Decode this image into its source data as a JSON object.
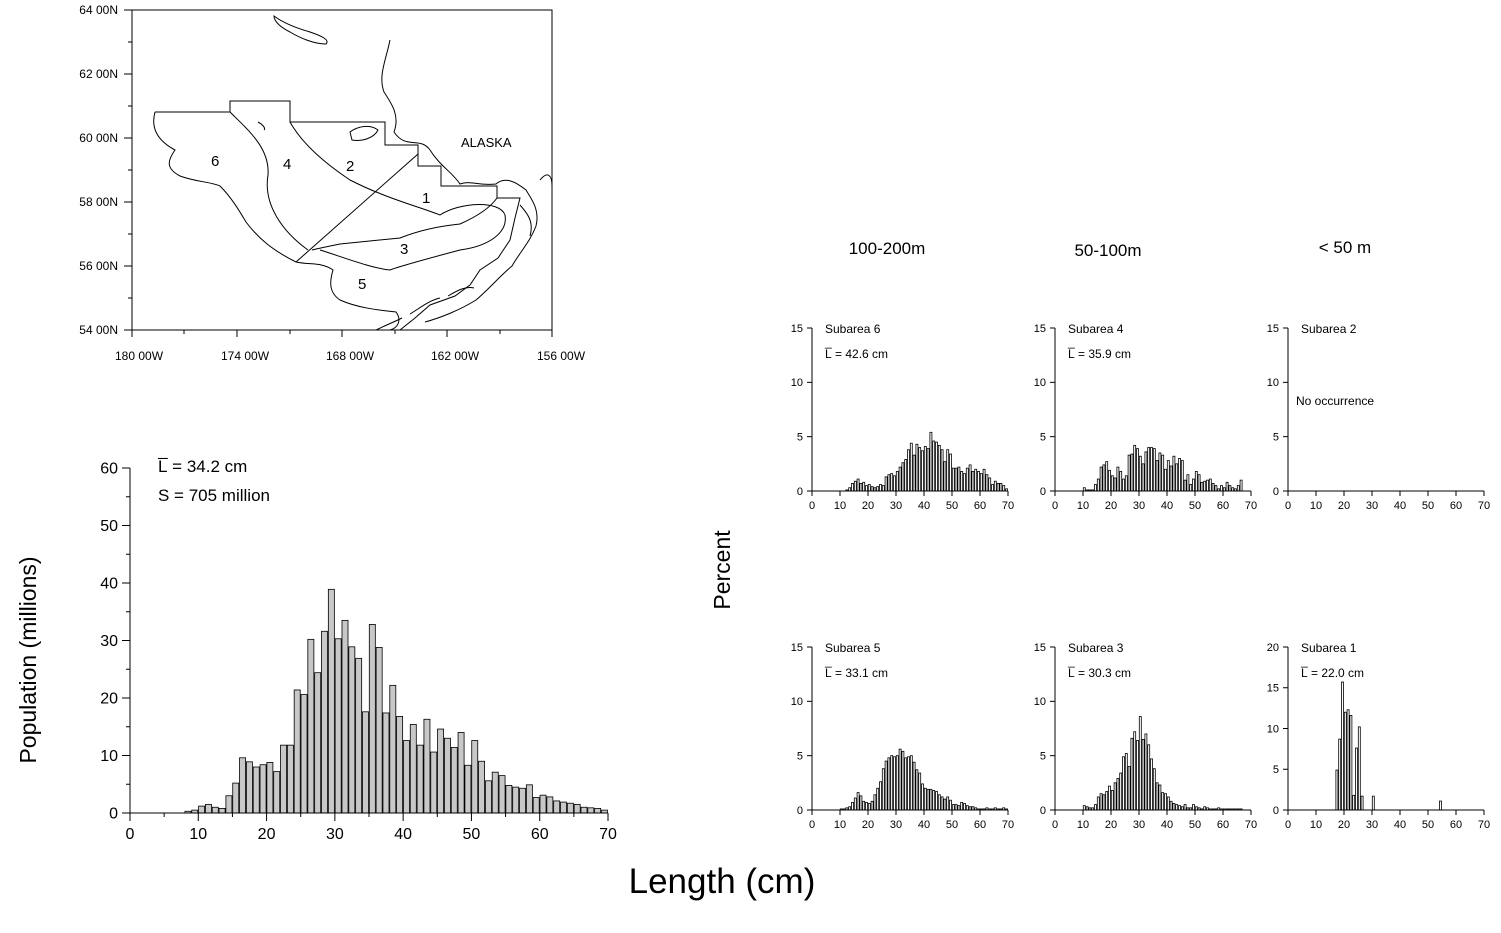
{
  "map": {
    "lat_labels": [
      "64 00N",
      "62 00N",
      "60 00N",
      "58 00N",
      "56 00N",
      "54 00N"
    ],
    "lon_labels": [
      "180 00W",
      "174 00W",
      "168 00W",
      "162 00W",
      "156 00W"
    ],
    "region_label": "ALASKA",
    "subarea_numbers": [
      "1",
      "2",
      "3",
      "4",
      "5",
      "6"
    ]
  },
  "depth_headers": [
    "100-200m",
    "50-100m",
    "< 50 m"
  ],
  "shared_ylabel": "Percent",
  "shared_xlabel": "Length (cm)",
  "main_mean_label": "L̅ = 34.2 cm",
  "main_s_label": "S =  705 million",
  "main_ylabel": "Population (millions)",
  "colors": {
    "main_bar": "#c8c8c8",
    "panel_bar": "#ffffff",
    "stroke": "#000000"
  },
  "chart_data": [
    {
      "type": "bar",
      "name": "Total population",
      "xlabel": "",
      "ylabel": "Population (millions)",
      "xlim": [
        0,
        70
      ],
      "ylim": [
        0,
        60
      ],
      "xticks": [
        0,
        10,
        20,
        30,
        40,
        50,
        60,
        70
      ],
      "yticks": [
        0,
        10,
        20,
        30,
        40,
        50,
        60
      ],
      "annotations": [
        "L̅ = 34.2 cm",
        "S =  705 million"
      ],
      "x": [
        8,
        9,
        10,
        11,
        12,
        13,
        14,
        15,
        16,
        17,
        18,
        19,
        20,
        21,
        22,
        23,
        24,
        25,
        26,
        27,
        28,
        29,
        30,
        31,
        32,
        33,
        34,
        35,
        36,
        37,
        38,
        39,
        40,
        41,
        42,
        43,
        44,
        45,
        46,
        47,
        48,
        49,
        50,
        51,
        52,
        53,
        54,
        55,
        56,
        57,
        58,
        59,
        60,
        61,
        62,
        63,
        64,
        65,
        66,
        67,
        68,
        69
      ],
      "values": [
        0.3,
        0.5,
        1.2,
        1.5,
        1.0,
        0.8,
        3.0,
        5.2,
        9.6,
        8.9,
        8.0,
        8.4,
        8.8,
        7.2,
        11.8,
        11.8,
        21.4,
        20.6,
        30.2,
        24.4,
        31.6,
        38.9,
        30.3,
        33.5,
        28.9,
        26.9,
        17.6,
        32.8,
        28.8,
        17.4,
        22.2,
        16.8,
        12.6,
        15.4,
        11.8,
        16.3,
        10.6,
        14.6,
        13.0,
        11.4,
        14.0,
        8.3,
        12.6,
        9.0,
        5.6,
        7.1,
        6.5,
        4.8,
        4.5,
        4.3,
        4.9,
        2.7,
        3.1,
        2.8,
        2.1,
        1.9,
        1.7,
        1.5,
        1.0,
        0.9,
        0.8,
        0.5
      ]
    },
    {
      "type": "bar",
      "name": "Subarea 6",
      "title": "Subarea 6",
      "mean_label": "L̅ = 42.6 cm",
      "xlim": [
        0,
        70
      ],
      "ylim": [
        0,
        15
      ],
      "xticks": [
        0,
        10,
        20,
        30,
        40,
        50,
        60,
        70
      ],
      "yticks": [
        0,
        5,
        10,
        15
      ],
      "x": [
        12,
        13,
        14,
        15,
        16,
        17,
        18,
        19,
        20,
        21,
        22,
        23,
        24,
        25,
        26,
        27,
        28,
        29,
        30,
        31,
        32,
        33,
        34,
        35,
        36,
        37,
        38,
        39,
        40,
        41,
        42,
        43,
        44,
        45,
        46,
        47,
        48,
        49,
        50,
        51,
        52,
        53,
        54,
        55,
        56,
        57,
        58,
        59,
        60,
        61,
        62,
        63,
        64,
        65,
        66,
        67,
        68,
        69
      ],
      "values": [
        0.1,
        0.3,
        0.7,
        0.9,
        1.1,
        0.7,
        0.8,
        0.5,
        0.6,
        0.4,
        0.3,
        0.4,
        0.6,
        0.5,
        1.3,
        1.5,
        1.6,
        1.4,
        1.8,
        2.2,
        2.6,
        2.9,
        3.8,
        4.4,
        3.3,
        4.3,
        4.0,
        3.7,
        4.1,
        3.9,
        5.4,
        4.6,
        4.5,
        4.2,
        3.8,
        2.7,
        3.8,
        3.4,
        2.1,
        2.1,
        2.2,
        1.8,
        1.6,
        2.1,
        2.4,
        1.8,
        2.0,
        1.8,
        1.6,
        2.0,
        1.5,
        1.2,
        0.6,
        0.9,
        0.7,
        0.7,
        0.5,
        0.2
      ]
    },
    {
      "type": "bar",
      "name": "Subarea 4",
      "title": "Subarea 4",
      "mean_label": "L̅ = 35.9 cm",
      "xlim": [
        0,
        70
      ],
      "ylim": [
        0,
        15
      ],
      "xticks": [
        0,
        10,
        20,
        30,
        40,
        50,
        60,
        70
      ],
      "yticks": [
        0,
        5,
        10,
        15
      ],
      "x": [
        10,
        11,
        12,
        13,
        14,
        15,
        16,
        17,
        18,
        19,
        20,
        21,
        22,
        23,
        24,
        25,
        26,
        27,
        28,
        29,
        30,
        31,
        32,
        33,
        34,
        35,
        36,
        37,
        38,
        39,
        40,
        41,
        42,
        43,
        44,
        45,
        46,
        47,
        48,
        49,
        50,
        51,
        52,
        53,
        54,
        55,
        56,
        57,
        58,
        59,
        60,
        61,
        62,
        63,
        64,
        65,
        66
      ],
      "values": [
        0.3,
        0.1,
        0.1,
        0.1,
        0.6,
        1.1,
        2.2,
        2.4,
        2.7,
        1.9,
        1.4,
        1.2,
        2.2,
        1.8,
        1.1,
        1.4,
        3.3,
        3.4,
        4.2,
        3.9,
        3.2,
        2.5,
        3.6,
        4.0,
        4.0,
        3.9,
        2.8,
        3.5,
        3.3,
        2.0,
        2.8,
        2.3,
        3.2,
        2.5,
        3.0,
        2.8,
        1.0,
        1.5,
        0.6,
        1.1,
        1.8,
        1.5,
        0.8,
        0.9,
        1.0,
        1.1,
        0.7,
        0.5,
        0.2,
        0.5,
        0.3,
        0.8,
        0.5,
        0.3,
        0.2,
        0.5,
        1.0
      ]
    },
    {
      "type": "bar",
      "name": "Subarea 2",
      "title": "Subarea 2",
      "note": "No occurrence",
      "xlim": [
        0,
        70
      ],
      "ylim": [
        0,
        15
      ],
      "xticks": [
        0,
        10,
        20,
        30,
        40,
        50,
        60,
        70
      ],
      "yticks": [
        0,
        5,
        10,
        15
      ],
      "x": [],
      "values": []
    },
    {
      "type": "bar",
      "name": "Subarea 5",
      "title": "Subarea 5",
      "mean_label": "L̅ = 33.1 cm",
      "xlim": [
        0,
        70
      ],
      "ylim": [
        0,
        15
      ],
      "xticks": [
        0,
        10,
        20,
        30,
        40,
        50,
        60,
        70
      ],
      "yticks": [
        0,
        5,
        10,
        15
      ],
      "x": [
        10,
        11,
        12,
        13,
        14,
        15,
        16,
        17,
        18,
        19,
        20,
        21,
        22,
        23,
        24,
        25,
        26,
        27,
        28,
        29,
        30,
        31,
        32,
        33,
        34,
        35,
        36,
        37,
        38,
        39,
        40,
        41,
        42,
        43,
        44,
        45,
        46,
        47,
        48,
        49,
        50,
        51,
        52,
        53,
        54,
        55,
        56,
        57,
        58,
        59,
        60,
        61,
        62,
        63,
        64,
        65,
        66,
        67,
        68,
        69
      ],
      "values": [
        0.1,
        0.1,
        0.2,
        0.3,
        0.7,
        1.1,
        1.6,
        1.3,
        0.8,
        0.7,
        0.6,
        0.8,
        1.4,
        2.0,
        2.6,
        3.8,
        4.5,
        4.8,
        5.0,
        4.9,
        5.0,
        5.6,
        5.4,
        4.8,
        4.9,
        5.0,
        4.4,
        3.7,
        3.4,
        2.4,
        2.0,
        1.9,
        1.9,
        1.8,
        1.7,
        1.4,
        1.2,
        1.0,
        1.2,
        0.9,
        0.5,
        0.5,
        0.4,
        0.7,
        0.6,
        0.4,
        0.3,
        0.3,
        0.2,
        0.1,
        0.1,
        0.1,
        0.2,
        0.1,
        0.1,
        0.2,
        0.1,
        0.1,
        0.2,
        0.1
      ]
    },
    {
      "type": "bar",
      "name": "Subarea 3",
      "title": "Subarea 3",
      "mean_label": "L̅ = 30.3 cm",
      "xlim": [
        0,
        70
      ],
      "ylim": [
        0,
        15
      ],
      "xticks": [
        0,
        10,
        20,
        30,
        40,
        50,
        60,
        70
      ],
      "yticks": [
        0,
        5,
        10,
        15
      ],
      "x": [
        10,
        11,
        12,
        13,
        14,
        15,
        16,
        17,
        18,
        19,
        20,
        21,
        22,
        23,
        24,
        25,
        26,
        27,
        28,
        29,
        30,
        31,
        32,
        33,
        34,
        35,
        36,
        37,
        38,
        39,
        40,
        41,
        42,
        43,
        44,
        45,
        46,
        47,
        48,
        49,
        50,
        51,
        52,
        53,
        54,
        55,
        56,
        57,
        58,
        59,
        60,
        61,
        62,
        63,
        64,
        65,
        66
      ],
      "values": [
        0.4,
        0.3,
        0.2,
        0.2,
        0.5,
        1.2,
        1.5,
        1.4,
        1.7,
        2.2,
        1.8,
        2.5,
        2.9,
        3.4,
        4.9,
        5.2,
        4.0,
        6.6,
        7.2,
        6.4,
        8.6,
        6.5,
        7.0,
        6.0,
        4.7,
        3.8,
        2.5,
        2.3,
        1.6,
        1.5,
        1.2,
        0.8,
        0.6,
        0.5,
        0.4,
        0.3,
        0.5,
        0.2,
        0.2,
        0.5,
        0.3,
        0.2,
        0.1,
        0.3,
        0.2,
        0.1,
        0.1,
        0.1,
        0.2,
        0.1,
        0.1,
        0.1,
        0.1,
        0.1,
        0.1,
        0.1,
        0.1
      ]
    },
    {
      "type": "bar",
      "name": "Subarea 1",
      "title": "Subarea 1",
      "mean_label": "L̅ = 22.0 cm",
      "xlim": [
        0,
        70
      ],
      "ylim": [
        0,
        20
      ],
      "xticks": [
        0,
        10,
        20,
        30,
        40,
        50,
        60,
        70
      ],
      "yticks": [
        0,
        5,
        10,
        15,
        20
      ],
      "x": [
        17,
        18,
        19,
        20,
        21,
        22,
        23,
        24,
        25,
        26,
        27,
        28,
        29,
        30,
        31,
        32,
        33,
        34,
        54
      ],
      "values": [
        4.9,
        8.7,
        15.7,
        12.0,
        12.3,
        11.6,
        1.8,
        7.6,
        10.2,
        1.7,
        0,
        0,
        0,
        1.7,
        0,
        0,
        0,
        0,
        1.1
      ]
    }
  ]
}
